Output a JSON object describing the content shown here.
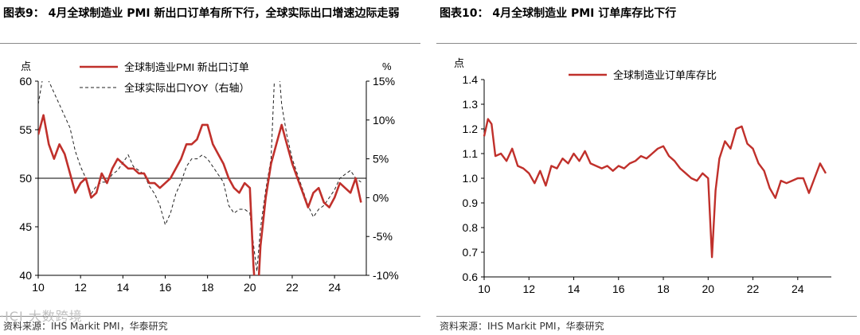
{
  "left": {
    "title": "图表9：  4月全球制造业 PMI 新出口订单有所下行，全球实际出口增速边际走弱",
    "source": "资料来源：IHS Markit PMI，华泰研究",
    "watermark": "·ICI 大数跨境",
    "chart_data": {
      "type": "line",
      "left_axis_unit": "点",
      "right_axis_unit": "%",
      "xlim": [
        2010,
        2025.5
      ],
      "ylim": [
        40,
        60
      ],
      "y2lim": [
        -10,
        15
      ],
      "x_ticks": [
        "10",
        "12",
        "14",
        "16",
        "18",
        "20",
        "22",
        "24"
      ],
      "y_ticks": [
        "40",
        "45",
        "50",
        "55",
        "60"
      ],
      "y2_ticks": [
        "-10%",
        "-5%",
        "0%",
        "5%",
        "10%",
        "15%"
      ],
      "reference_line": 50,
      "legend": "top-left",
      "series": [
        {
          "name": "全球制造业PMI 新出口订单",
          "axis": "left",
          "color": "#c0302b",
          "style": "solid",
          "x": [
            2010.0,
            2010.25,
            2010.5,
            2010.75,
            2011.0,
            2011.25,
            2011.5,
            2011.75,
            2012.0,
            2012.25,
            2012.5,
            2012.75,
            2013.0,
            2013.25,
            2013.5,
            2013.75,
            2014.0,
            2014.25,
            2014.5,
            2014.75,
            2015.0,
            2015.25,
            2015.5,
            2015.75,
            2016.0,
            2016.25,
            2016.5,
            2016.75,
            2017.0,
            2017.25,
            2017.5,
            2017.75,
            2018.0,
            2018.25,
            2018.5,
            2018.75,
            2019.0,
            2019.25,
            2019.5,
            2019.75,
            2020.0,
            2020.17,
            2020.33,
            2020.5,
            2020.75,
            2021.0,
            2021.25,
            2021.5,
            2021.75,
            2022.0,
            2022.25,
            2022.5,
            2022.75,
            2023.0,
            2023.25,
            2023.5,
            2023.75,
            2024.0,
            2024.25,
            2024.5,
            2024.75,
            2025.0,
            2025.25
          ],
          "values": [
            54.5,
            56.5,
            53.5,
            52.0,
            53.5,
            52.5,
            50.5,
            48.5,
            49.5,
            50.0,
            48.0,
            48.5,
            50.5,
            49.5,
            51.0,
            52.0,
            51.5,
            51.0,
            51.0,
            50.5,
            50.5,
            49.5,
            49.5,
            49.0,
            49.5,
            50.0,
            51.0,
            52.0,
            53.5,
            53.5,
            54.0,
            55.5,
            55.5,
            53.5,
            52.5,
            51.5,
            50.0,
            49.0,
            48.5,
            49.5,
            49.0,
            41.0,
            36.0,
            43.0,
            48.0,
            51.5,
            53.5,
            55.5,
            53.5,
            51.5,
            50.0,
            48.5,
            47.0,
            48.5,
            49.0,
            47.5,
            47.0,
            48.0,
            49.5,
            49.0,
            48.5,
            50.0,
            47.5
          ]
        },
        {
          "name": "全球实际出口YOY（右轴）",
          "axis": "right",
          "color": "#222222",
          "style": "dashed",
          "x": [
            2010.0,
            2010.25,
            2010.5,
            2010.75,
            2011.0,
            2011.25,
            2011.5,
            2011.75,
            2012.0,
            2012.25,
            2012.5,
            2012.75,
            2013.0,
            2013.25,
            2013.5,
            2013.75,
            2014.0,
            2014.25,
            2014.5,
            2014.75,
            2015.0,
            2015.25,
            2015.5,
            2015.75,
            2016.0,
            2016.25,
            2016.5,
            2016.75,
            2017.0,
            2017.25,
            2017.5,
            2017.75,
            2018.0,
            2018.25,
            2018.5,
            2018.75,
            2019.0,
            2019.25,
            2019.5,
            2019.75,
            2020.0,
            2020.17,
            2020.33,
            2020.5,
            2020.75,
            2021.0,
            2021.17,
            2021.33,
            2021.5,
            2021.75,
            2022.0,
            2022.25,
            2022.5,
            2022.75,
            2023.0,
            2023.25,
            2023.5,
            2023.75,
            2024.0,
            2024.25,
            2024.5,
            2024.75,
            2025.0,
            2025.25
          ],
          "values": [
            12.0,
            16.0,
            15.0,
            13.5,
            12.0,
            10.5,
            9.0,
            6.0,
            4.0,
            2.5,
            0.5,
            1.5,
            2.0,
            2.0,
            3.0,
            3.5,
            4.5,
            5.5,
            4.0,
            3.5,
            3.0,
            1.5,
            0.5,
            -1.0,
            -3.5,
            -2.0,
            0.5,
            2.0,
            4.0,
            5.0,
            5.0,
            5.5,
            5.0,
            4.0,
            3.0,
            2.0,
            -1.0,
            -2.0,
            -1.5,
            -1.5,
            -2.0,
            -6.0,
            -9.5,
            -4.0,
            1.0,
            5.0,
            16.0,
            18.0,
            12.0,
            8.0,
            5.0,
            3.0,
            1.0,
            -1.0,
            -2.5,
            -1.5,
            -1.0,
            0.0,
            1.0,
            2.5,
            3.0,
            3.5,
            2.5,
            2.0
          ]
        }
      ]
    }
  },
  "right": {
    "title": "图表10：  4月全球制造业 PMI 订单库存比下行",
    "source": "资料来源：IHS Markit PMI，华泰研究",
    "chart_data": {
      "type": "line",
      "left_axis_unit": "点",
      "xlim": [
        2010,
        2025.5
      ],
      "ylim": [
        0.6,
        1.4
      ],
      "x_ticks": [
        "10",
        "12",
        "14",
        "16",
        "18",
        "20",
        "22",
        "24"
      ],
      "y_ticks": [
        "0.6",
        "0.7",
        "0.8",
        "0.9",
        "1.0",
        "1.1",
        "1.2",
        "1.3",
        "1.4"
      ],
      "legend": "top-center",
      "series": [
        {
          "name": "全球制造业订单库存比",
          "color": "#c0302b",
          "style": "solid",
          "x": [
            2010.0,
            2010.17,
            2010.33,
            2010.5,
            2010.75,
            2011.0,
            2011.25,
            2011.5,
            2011.75,
            2012.0,
            2012.25,
            2012.5,
            2012.75,
            2013.0,
            2013.25,
            2013.5,
            2013.75,
            2014.0,
            2014.25,
            2014.5,
            2014.75,
            2015.0,
            2015.25,
            2015.5,
            2015.75,
            2016.0,
            2016.25,
            2016.5,
            2016.75,
            2017.0,
            2017.25,
            2017.5,
            2017.75,
            2018.0,
            2018.25,
            2018.5,
            2018.75,
            2019.0,
            2019.25,
            2019.5,
            2019.75,
            2020.0,
            2020.17,
            2020.33,
            2020.5,
            2020.75,
            2021.0,
            2021.25,
            2021.5,
            2021.75,
            2022.0,
            2022.25,
            2022.5,
            2022.75,
            2023.0,
            2023.25,
            2023.5,
            2023.75,
            2024.0,
            2024.25,
            2024.5,
            2024.75,
            2025.0,
            2025.25
          ],
          "values": [
            1.17,
            1.24,
            1.22,
            1.09,
            1.1,
            1.07,
            1.12,
            1.05,
            1.04,
            1.02,
            0.98,
            1.03,
            0.97,
            1.05,
            1.04,
            1.08,
            1.06,
            1.1,
            1.07,
            1.11,
            1.06,
            1.05,
            1.04,
            1.05,
            1.03,
            1.05,
            1.04,
            1.06,
            1.07,
            1.09,
            1.08,
            1.1,
            1.12,
            1.13,
            1.09,
            1.07,
            1.04,
            1.02,
            1.0,
            0.99,
            1.02,
            1.0,
            0.68,
            0.95,
            1.08,
            1.15,
            1.12,
            1.2,
            1.21,
            1.14,
            1.12,
            1.06,
            1.03,
            0.96,
            0.92,
            0.99,
            0.98,
            0.99,
            1.0,
            1.0,
            0.94,
            1.0,
            1.06,
            1.02
          ]
        }
      ]
    }
  }
}
